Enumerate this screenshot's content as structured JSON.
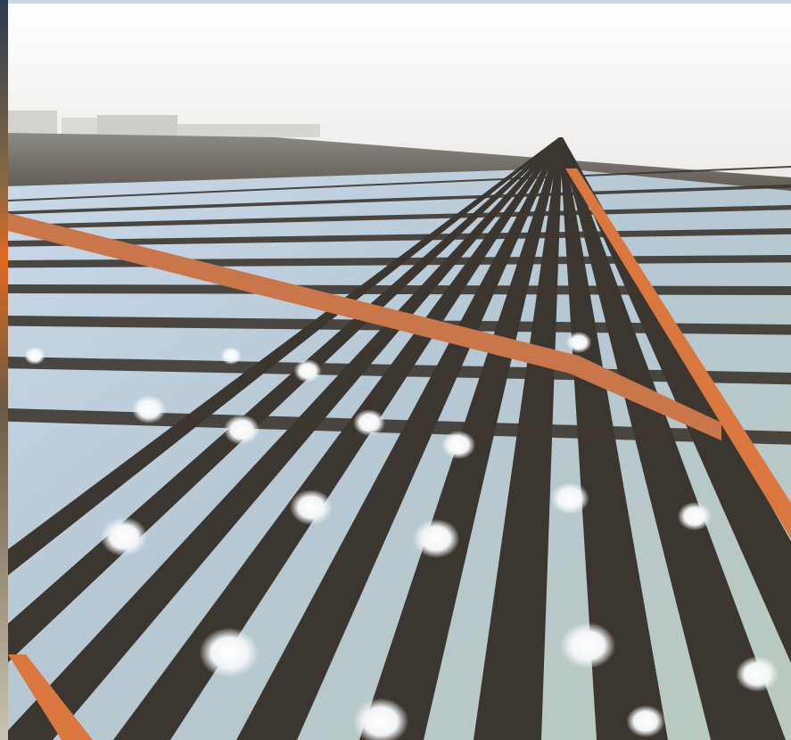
{
  "image": {
    "subject": "aerial-shrimp-farm-ponds",
    "colors": {
      "sky": "#f7f7f5",
      "horizon_haze": "#e4e4e0",
      "dike": "#3c3630",
      "water": "#bcccc8",
      "road": "#d9773e",
      "aerator_splash": "#ffffff"
    }
  }
}
